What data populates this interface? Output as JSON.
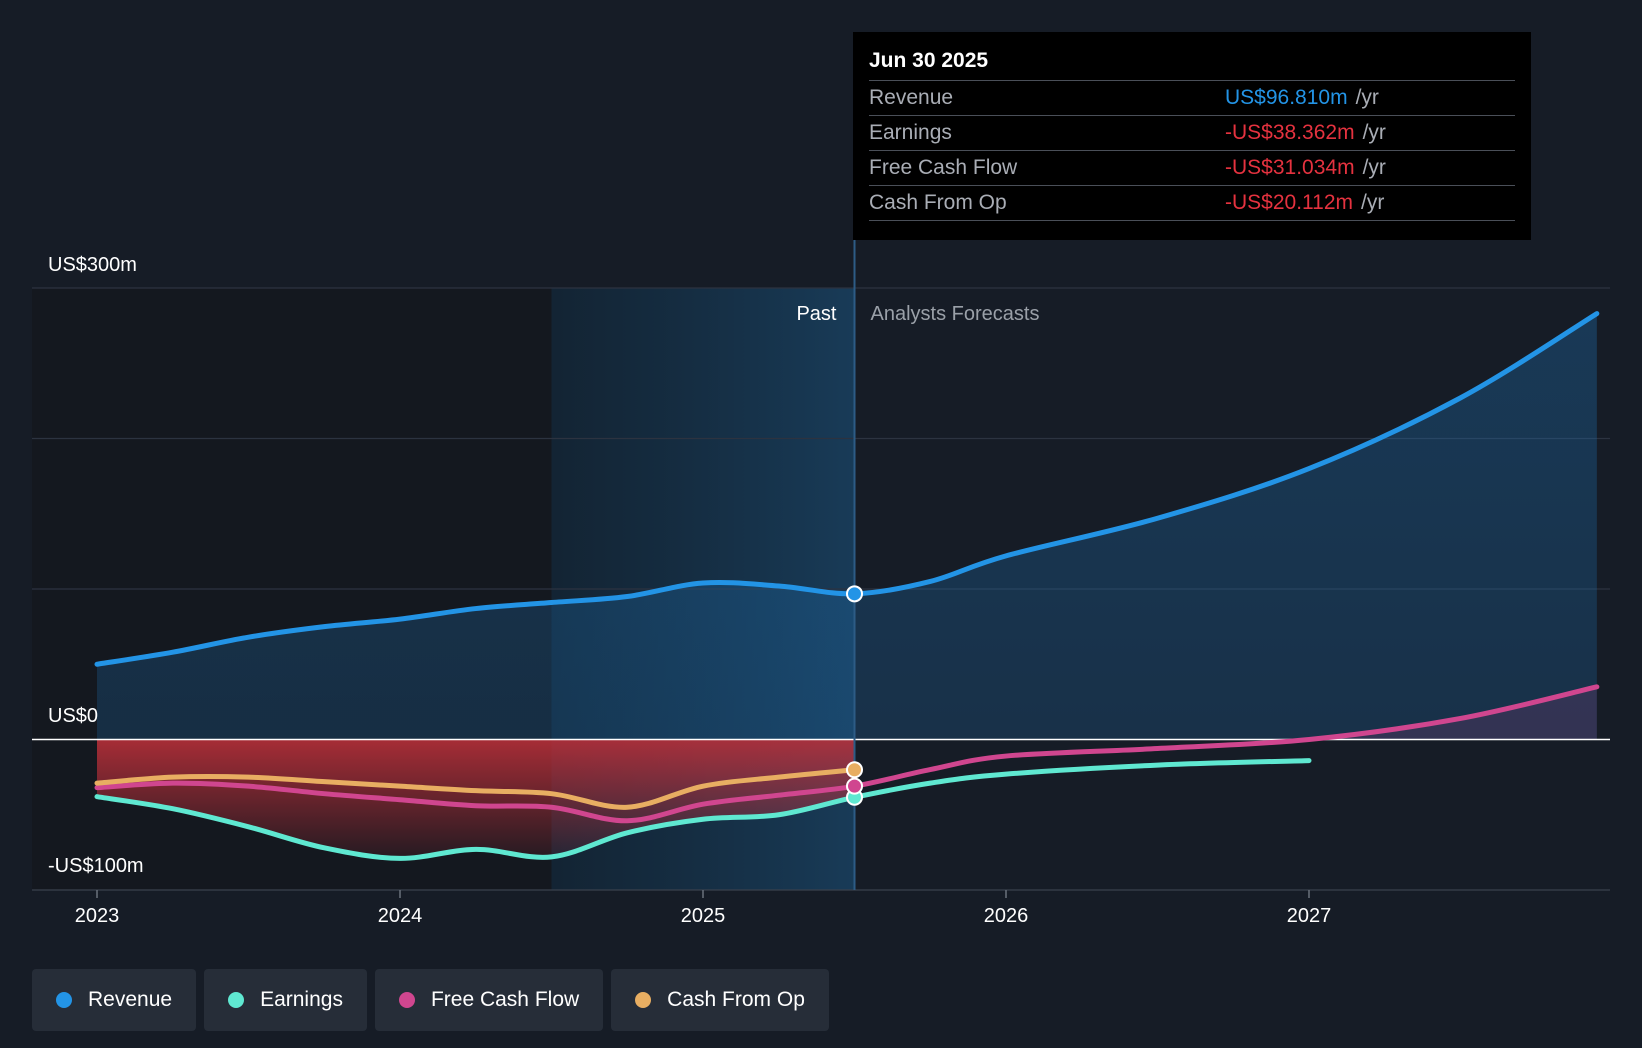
{
  "tooltip": {
    "date": "Jun 30 2025",
    "rows": [
      {
        "name": "Revenue",
        "value": "US$96.810m",
        "unit": "/yr",
        "color": "#2394e6"
      },
      {
        "name": "Earnings",
        "value": "-US$38.362m",
        "unit": "/yr",
        "color": "#e5323f"
      },
      {
        "name": "Free Cash Flow",
        "value": "-US$31.034m",
        "unit": "/yr",
        "color": "#e5323f"
      },
      {
        "name": "Cash From Op",
        "value": "-US$20.112m",
        "unit": "/yr",
        "color": "#e5323f"
      }
    ]
  },
  "legend": [
    {
      "label": "Revenue",
      "color": "#2394e6"
    },
    {
      "label": "Earnings",
      "color": "#5fe8d1"
    },
    {
      "label": "Free Cash Flow",
      "color": "#d0468f"
    },
    {
      "label": "Cash From Op",
      "color": "#e8ae62"
    }
  ],
  "chart_data": {
    "type": "line",
    "ylabel_top": "US$300m",
    "ylabel_zero": "US$0",
    "ylabel_bottom": "-US$100m",
    "ylim": [
      -100,
      300
    ],
    "xlim": [
      2022.88,
      2027.95
    ],
    "x_ticks": [
      {
        "x": 2023,
        "label": "2023"
      },
      {
        "x": 2024,
        "label": "2024"
      },
      {
        "x": 2025,
        "label": "2025"
      },
      {
        "x": 2026,
        "label": "2026"
      },
      {
        "x": 2027,
        "label": "2027"
      }
    ],
    "past_label": "Past",
    "forecast_label": "Analysts Forecasts",
    "divider_x": 2025.5,
    "highlight_start_x": 2024.5,
    "series": [
      {
        "name": "Revenue",
        "color": "#2394e6",
        "points": [
          [
            2023.0,
            50
          ],
          [
            2023.25,
            58
          ],
          [
            2023.5,
            68
          ],
          [
            2023.75,
            75
          ],
          [
            2024.0,
            80
          ],
          [
            2024.25,
            87
          ],
          [
            2024.5,
            91
          ],
          [
            2024.75,
            95
          ],
          [
            2025.0,
            104
          ],
          [
            2025.25,
            102
          ],
          [
            2025.5,
            96.8
          ],
          [
            2025.75,
            105
          ],
          [
            2026.0,
            122
          ],
          [
            2026.5,
            147
          ],
          [
            2027.0,
            180
          ],
          [
            2027.5,
            227
          ],
          [
            2027.95,
            283
          ]
        ]
      },
      {
        "name": "Earnings",
        "color": "#5fe8d1",
        "points": [
          [
            2023.0,
            -38
          ],
          [
            2023.25,
            -46
          ],
          [
            2023.5,
            -58
          ],
          [
            2023.75,
            -72
          ],
          [
            2024.0,
            -79
          ],
          [
            2024.25,
            -73
          ],
          [
            2024.5,
            -78
          ],
          [
            2024.75,
            -62
          ],
          [
            2025.0,
            -53
          ],
          [
            2025.25,
            -50
          ],
          [
            2025.5,
            -38.4
          ],
          [
            2025.75,
            -29
          ],
          [
            2026.0,
            -23
          ],
          [
            2026.5,
            -17
          ],
          [
            2027.0,
            -14
          ]
        ]
      },
      {
        "name": "Free Cash Flow",
        "color": "#d0468f",
        "points": [
          [
            2023.0,
            -32
          ],
          [
            2023.25,
            -29
          ],
          [
            2023.5,
            -31
          ],
          [
            2023.75,
            -36
          ],
          [
            2024.0,
            -40
          ],
          [
            2024.25,
            -44
          ],
          [
            2024.5,
            -45
          ],
          [
            2024.75,
            -54
          ],
          [
            2025.0,
            -43
          ],
          [
            2025.25,
            -37
          ],
          [
            2025.5,
            -31.0
          ],
          [
            2025.75,
            -20
          ],
          [
            2026.0,
            -11
          ],
          [
            2026.5,
            -6
          ],
          [
            2027.0,
            0
          ],
          [
            2027.5,
            14
          ],
          [
            2027.95,
            35
          ]
        ]
      },
      {
        "name": "Cash From Op",
        "color": "#e8ae62",
        "points": [
          [
            2023.0,
            -29
          ],
          [
            2023.25,
            -25
          ],
          [
            2023.5,
            -25
          ],
          [
            2023.75,
            -28
          ],
          [
            2024.0,
            -31
          ],
          [
            2024.25,
            -34
          ],
          [
            2024.5,
            -36
          ],
          [
            2024.75,
            -45
          ],
          [
            2025.0,
            -31
          ],
          [
            2025.25,
            -25
          ],
          [
            2025.5,
            -20.1
          ]
        ]
      }
    ]
  }
}
